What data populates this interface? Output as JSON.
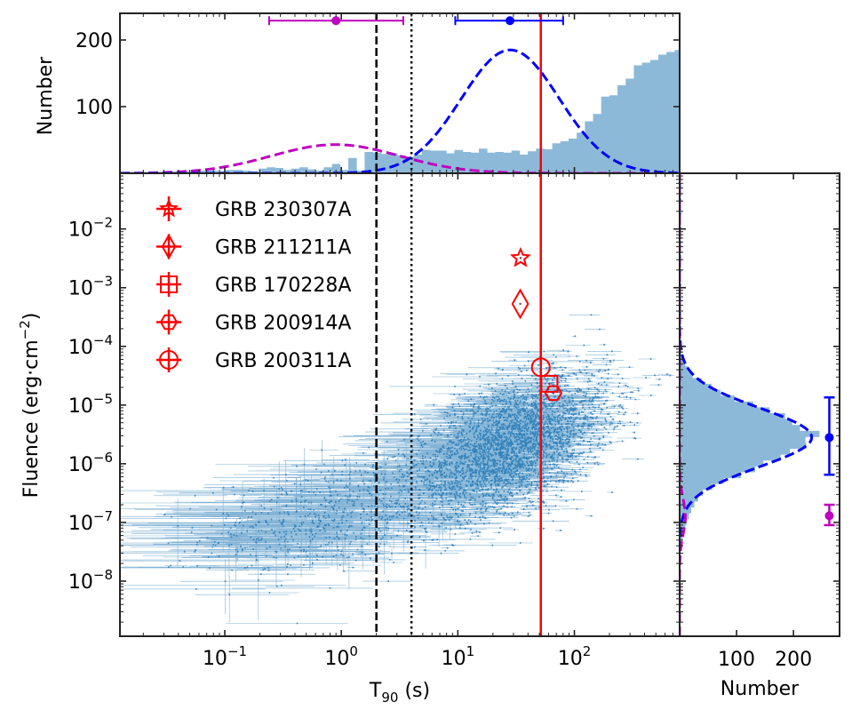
{
  "chart_data": {
    "type": "scatter",
    "title": "",
    "main": {
      "xlabel": "T90 (s)",
      "xlabel_main": "T",
      "xlabel_sub": "90",
      "xlabel_rest": " (s)",
      "ylabel": "Fluence (erg·cm⁻²)",
      "ylabel_main": "Fluence (erg·cm",
      "ylabel_sup": "−2",
      "ylabel_end": ")",
      "xscale": "log",
      "yscale": "log",
      "xlim": [
        0.0126,
        800
      ],
      "ylim": [
        1.15e-09,
        0.089
      ],
      "xticks": [
        {
          "value": 0.1,
          "base": "10",
          "exp": "−1"
        },
        {
          "value": 1,
          "base": "10",
          "exp": "0"
        },
        {
          "value": 10,
          "base": "10",
          "exp": "1"
        },
        {
          "value": 100,
          "base": "10",
          "exp": "2"
        }
      ],
      "yticks": [
        {
          "value": 0.01,
          "base": "10",
          "exp": "−2"
        },
        {
          "value": 0.001,
          "base": "10",
          "exp": "−3"
        },
        {
          "value": 0.0001,
          "base": "10",
          "exp": "−4"
        },
        {
          "value": 1e-05,
          "base": "10",
          "exp": "−5"
        },
        {
          "value": 1e-06,
          "base": "10",
          "exp": "−6"
        },
        {
          "value": 1e-07,
          "base": "10",
          "exp": "−7"
        },
        {
          "value": 1e-08,
          "base": "10",
          "exp": "−8"
        }
      ],
      "vlines": [
        {
          "name": "short-long-divider-dashed",
          "x": 2,
          "style": "dashed",
          "color": "#000000"
        },
        {
          "name": "intersection-dotted",
          "x": 4,
          "style": "dotted",
          "color": "#000000"
        },
        {
          "name": "grb-reference-line",
          "x": 51.5,
          "style": "solid",
          "color": "#ff0000"
        }
      ],
      "scatter_color": "#1f77b4",
      "scatter_description": "Several thousand GRBs with T90 and fluence error bars; short bursts cluster at fluence ~1e-7 and long bursts at ~3e-6, trend rising with T90",
      "highlighted": [
        {
          "label": "GRB 230307A",
          "marker": "star",
          "x": 34.5,
          "y": 0.0032
        },
        {
          "label": "GRB 211211A",
          "marker": "diamond",
          "x": 34.3,
          "y": 0.00053
        },
        {
          "label": "GRB 170228A",
          "marker": "square",
          "x": 61.0,
          "y": 2.3e-05
        },
        {
          "label": "GRB 200914A",
          "marker": "hexagon",
          "x": 66.0,
          "y": 1.6e-05
        },
        {
          "label": "GRB 200311A",
          "marker": "circle",
          "x": 51.5,
          "y": 4.4e-05
        }
      ],
      "highlight_color": "#ff0000",
      "legend_location": "upper-left"
    },
    "top_hist": {
      "type": "bar",
      "ylabel": "Number",
      "ylim": [
        0,
        240
      ],
      "yticks": [
        100,
        200
      ],
      "bar_color": "#8db9d9",
      "log10_bin_edges_start": -1.9,
      "log10_bin_width": 0.07,
      "counts": [
        2,
        2,
        2,
        2,
        2,
        2,
        3,
        3,
        3,
        3,
        4,
        4,
        3,
        5,
        5,
        4,
        3,
        7,
        9,
        8,
        5,
        7,
        9,
        6,
        4,
        9,
        14,
        5,
        23,
        4,
        32,
        31,
        29,
        30,
        27,
        24,
        28,
        35,
        34,
        34,
        30,
        35,
        32,
        31,
        37,
        31,
        32,
        31,
        34,
        28,
        33,
        37,
        36,
        45,
        48,
        52,
        61,
        78,
        89,
        115,
        117,
        132,
        142,
        162,
        166,
        170,
        178,
        182,
        185,
        192,
        186,
        185,
        204,
        172,
        172,
        155,
        135,
        120,
        106,
        95,
        72,
        59,
        50,
        42,
        35,
        30,
        28,
        23,
        16,
        12,
        10,
        8,
        5,
        3
      ],
      "fits": [
        {
          "name": "short-component",
          "color": "#bf00bf",
          "mu_log10": -0.05,
          "sigma_log10": 0.55,
          "amplitude": 43
        },
        {
          "name": "long-component",
          "color": "#0000ff",
          "mu_log10": 1.45,
          "sigma_log10": 0.42,
          "amplitude": 185
        }
      ],
      "errorbars": [
        {
          "name": "short-peak",
          "color": "#bf00bf",
          "x": 0.9,
          "xlow": 0.24,
          "xhigh": 3.4,
          "y": 229
        },
        {
          "name": "long-peak",
          "color": "#0000ff",
          "x": 28,
          "xlow": 9.5,
          "xhigh": 80,
          "y": 229
        }
      ]
    },
    "right_hist": {
      "type": "bar",
      "orientation": "horizontal",
      "xlabel": "Number",
      "xlim": [
        0,
        281
      ],
      "xticks": [
        100,
        200
      ],
      "bar_color": "#8db9d9",
      "fits": [
        {
          "name": "long-component",
          "color": "#0000ff",
          "mu_log10": -5.55,
          "sigma_log10": 0.5,
          "amplitude": 232
        },
        {
          "name": "short-component",
          "color": "#bf00bf",
          "mu_log10": -6.9,
          "sigma_log10": 0.3,
          "amplitude": 10
        }
      ],
      "errorbars": [
        {
          "name": "long-peak",
          "color": "#0000ff",
          "y": 2.8e-06,
          "ylow": 6.5e-07,
          "yhigh": 1.35e-05,
          "x": 263
        },
        {
          "name": "short-peak",
          "color": "#bf00bf",
          "y": 1.3e-07,
          "ylow": 9e-08,
          "yhigh": 2e-07,
          "x": 263
        }
      ]
    }
  }
}
